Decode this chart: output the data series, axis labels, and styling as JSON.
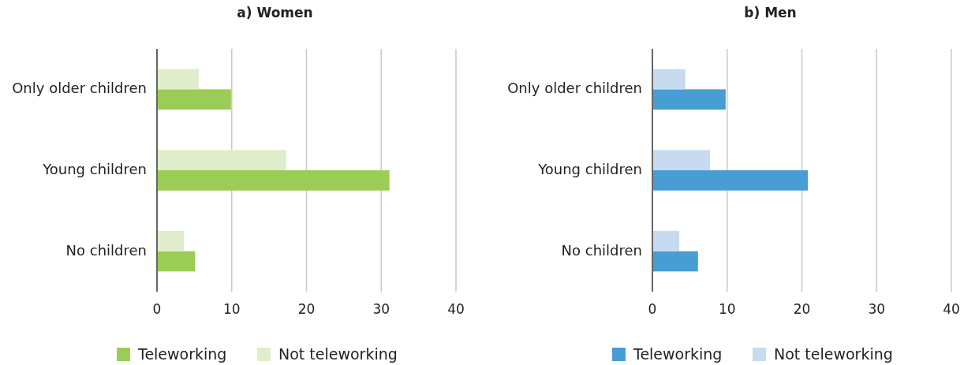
{
  "chart_data": [
    {
      "type": "bar",
      "orientation": "horizontal",
      "title": "a) Women",
      "categories": [
        "Only older children",
        "Young children",
        "No children"
      ],
      "series": [
        {
          "name": "Teleworking",
          "color": "#9bcc55",
          "values": [
            9.9,
            31.1,
            5.1
          ]
        },
        {
          "name": "Not teleworking",
          "color": "#dfedca",
          "values": [
            5.6,
            17.3,
            3.6
          ]
        }
      ],
      "xlim": [
        0,
        40
      ],
      "xticks": [
        0,
        10,
        20,
        30,
        40
      ],
      "grid": "x",
      "legend": "bottom"
    },
    {
      "type": "bar",
      "orientation": "horizontal",
      "title": "b) Men",
      "categories": [
        "Only older children",
        "Young children",
        "No children"
      ],
      "series": [
        {
          "name": "Teleworking",
          "color": "#489dd5",
          "values": [
            9.8,
            20.8,
            6.1
          ]
        },
        {
          "name": "Not teleworking",
          "color": "#c6dbef",
          "values": [
            4.4,
            7.7,
            3.6
          ]
        }
      ],
      "xlim": [
        0,
        40
      ],
      "xticks": [
        0,
        10,
        20,
        30,
        40
      ],
      "grid": "x",
      "legend": "bottom"
    }
  ]
}
